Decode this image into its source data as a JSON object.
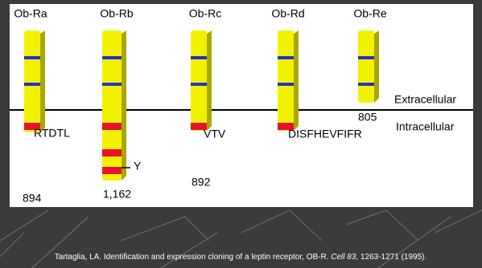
{
  "title_regions": {
    "extracellular": "Extracellular",
    "intracellular": "Intracellular"
  },
  "receptors": [
    {
      "name": "Ob-Ra",
      "tail_label": "RTDTL",
      "length": "894"
    },
    {
      "name": "Ob-Rb",
      "tail_label": "Y",
      "length": "1,162"
    },
    {
      "name": "Ob-Rc",
      "tail_label": "VTV",
      "length": "892"
    },
    {
      "name": "Ob-Rd",
      "tail_label": "DISFHEVFIFR",
      "length": null
    },
    {
      "name": "Ob-Re",
      "tail_label": null,
      "length": "805"
    }
  ],
  "caption": {
    "before": "Tartaglia, LA. Identification and expression cloning of a leptin receptor, OB-R. ",
    "journal": "Cell 83",
    "after": ", 1263-1271 (1995)."
  }
}
